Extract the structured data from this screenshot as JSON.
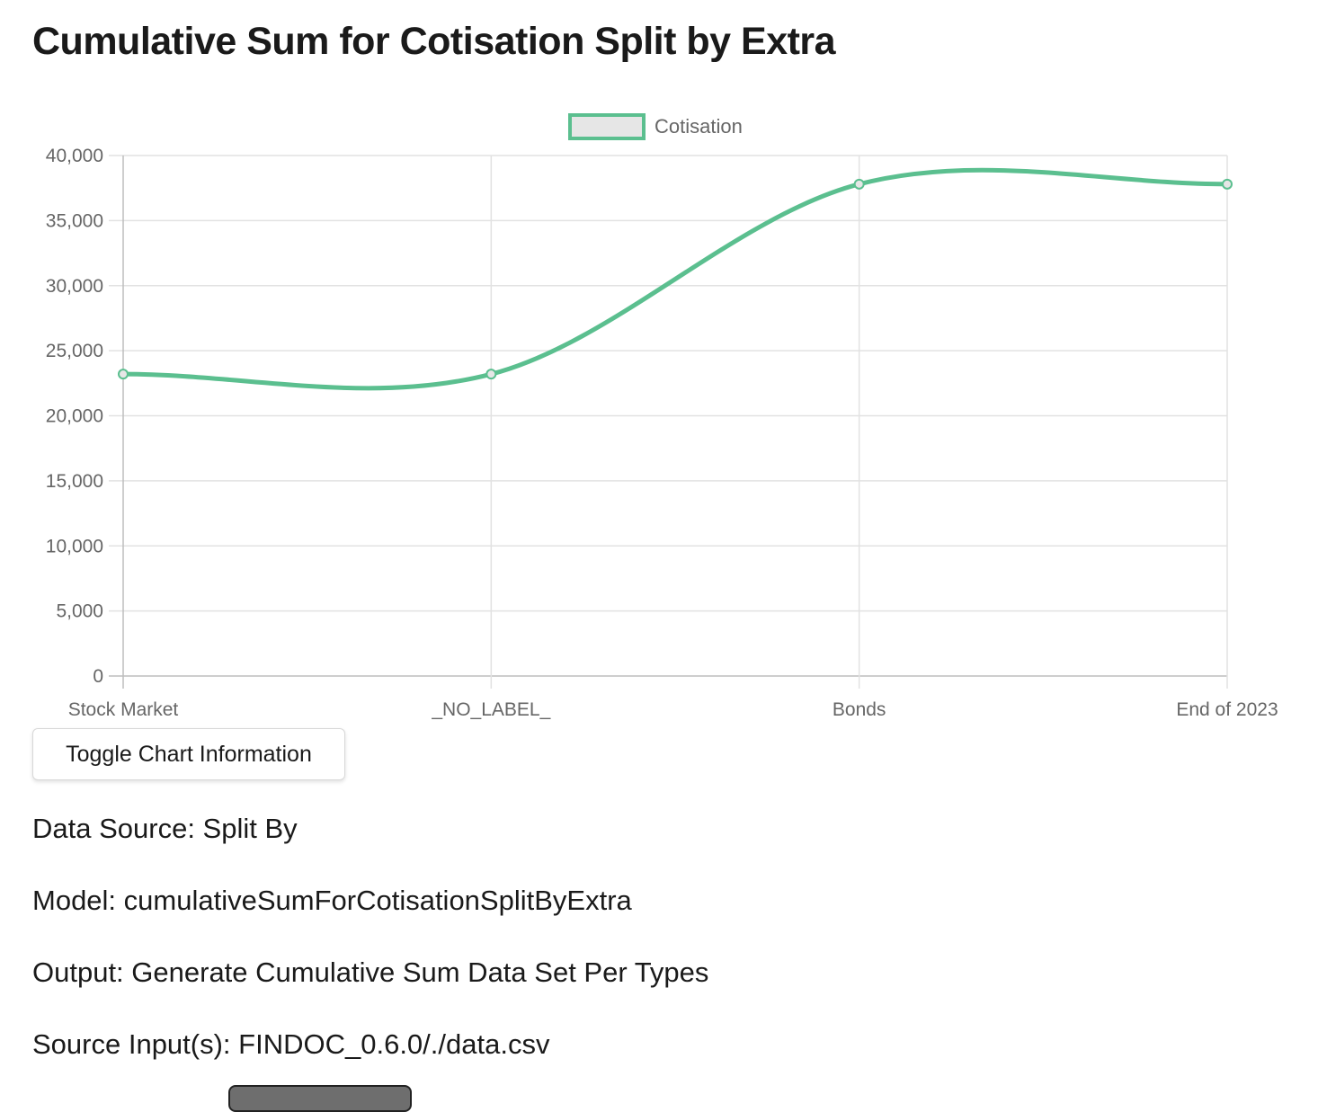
{
  "page": {
    "title": "Cumulative Sum for Cotisation Split by Extra",
    "toggle_label": "Toggle Chart Information"
  },
  "info": {
    "data_source": "Data Source: Split By",
    "model": "Model: cumulativeSumForCotisationSplitByExtra",
    "output": "Output: Generate Cumulative Sum Data Set Per Types",
    "source_inputs": "Source Input(s): FINDOC_0.6.0/./data.csv"
  },
  "chart_data": {
    "type": "line",
    "title": "",
    "xlabel": "",
    "ylabel": "",
    "categories": [
      "Stock Market",
      "_NO_LABEL_",
      "Bonds",
      "End of 2023"
    ],
    "series": [
      {
        "name": "Cotisation",
        "values": [
          23200,
          23200,
          37800,
          37800
        ],
        "color": "#5bbf8f"
      }
    ],
    "ylim": [
      0,
      40000
    ],
    "yticks": [
      0,
      5000,
      10000,
      15000,
      20000,
      25000,
      30000,
      35000,
      40000
    ],
    "ytick_labels": [
      "0",
      "5,000",
      "10,000",
      "15,000",
      "20,000",
      "25,000",
      "30,000",
      "35,000",
      "40,000"
    ],
    "grid": true,
    "legend_position": "top-center",
    "smooth": true
  }
}
